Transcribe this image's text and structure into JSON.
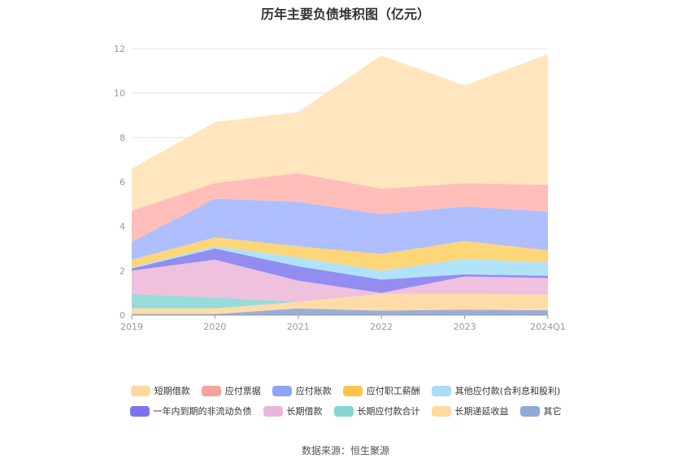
{
  "chart_data": {
    "type": "area",
    "stacked": true,
    "title": "历年主要负债堆积图（亿元）",
    "x": [
      "2019",
      "2020",
      "2021",
      "2022",
      "2023",
      "2024Q1"
    ],
    "ylim": [
      0,
      12
    ],
    "yticks": [
      0,
      2,
      4,
      6,
      8,
      10,
      12
    ],
    "grid": true,
    "legend_position": "bottom",
    "series": [
      {
        "name": "其它",
        "color": "#8fa8d8",
        "values": [
          0.05,
          0.05,
          0.3,
          0.2,
          0.25,
          0.22
        ]
      },
      {
        "name": "长期递延收益",
        "color": "#ffd9a0",
        "values": [
          0.25,
          0.25,
          0.3,
          0.75,
          0.72,
          0.7
        ]
      },
      {
        "name": "长期应付款合计",
        "color": "#8fd9d6",
        "values": [
          0.65,
          0.5,
          0.0,
          0.0,
          0.0,
          0.0
        ]
      },
      {
        "name": "长期借款",
        "color": "#eebcdc",
        "values": [
          1.05,
          1.7,
          0.95,
          0.05,
          0.77,
          0.75
        ]
      },
      {
        "name": "一年内到期的非流动负债",
        "color": "#8a82f0",
        "values": [
          0.1,
          0.5,
          0.65,
          0.6,
          0.1,
          0.1
        ]
      },
      {
        "name": "其他应付款(合利息和股利)",
        "color": "#a9dff8",
        "values": [
          0.05,
          0.1,
          0.4,
          0.4,
          0.7,
          0.6
        ]
      },
      {
        "name": "应付职工薪酬",
        "color": "#ffd26b",
        "values": [
          0.35,
          0.4,
          0.5,
          0.75,
          0.8,
          0.55
        ]
      },
      {
        "name": "应付账款",
        "color": "#a8b8ff",
        "values": [
          0.8,
          1.75,
          2.0,
          1.8,
          1.55,
          1.75
        ]
      },
      {
        "name": "应付票据",
        "color": "#ffb8b3",
        "values": [
          1.4,
          0.7,
          1.3,
          1.15,
          1.05,
          1.2
        ]
      },
      {
        "name": "短期借款",
        "color": "#ffe4b8",
        "values": [
          1.9,
          2.75,
          2.75,
          6.0,
          4.4,
          5.9
        ]
      }
    ]
  },
  "legend": {
    "row1": [
      {
        "label": "短期借款",
        "color": "#ffd9a0"
      },
      {
        "label": "应付票据",
        "color": "#f5a39d"
      },
      {
        "label": "应付账款",
        "color": "#8fa4f5"
      },
      {
        "label": "应付职工薪酬",
        "color": "#ffc445"
      },
      {
        "label": "其他应付款(合利息和股利)",
        "color": "#a8dcf7"
      }
    ],
    "row2": [
      {
        "label": "一年内到期的非流动负债",
        "color": "#7b74ee"
      },
      {
        "label": "长期借款",
        "color": "#e9b6d8"
      },
      {
        "label": "长期应付款合计",
        "color": "#87d4d1"
      },
      {
        "label": "长期递延收益",
        "color": "#ffd9a0"
      },
      {
        "label": "其它",
        "color": "#8faad8"
      }
    ]
  },
  "source": "数据来源：恒生聚源"
}
